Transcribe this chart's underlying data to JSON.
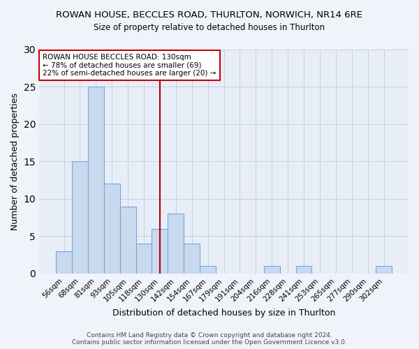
{
  "title": "ROWAN HOUSE, BECCLES ROAD, THURLTON, NORWICH, NR14 6RE",
  "subtitle": "Size of property relative to detached houses in Thurlton",
  "xlabel": "Distribution of detached houses by size in Thurlton",
  "ylabel": "Number of detached properties",
  "categories": [
    "56sqm",
    "68sqm",
    "81sqm",
    "93sqm",
    "105sqm",
    "118sqm",
    "130sqm",
    "142sqm",
    "154sqm",
    "167sqm",
    "179sqm",
    "191sqm",
    "204sqm",
    "216sqm",
    "228sqm",
    "241sqm",
    "253sqm",
    "265sqm",
    "277sqm",
    "290sqm",
    "302sqm"
  ],
  "values": [
    3,
    15,
    25,
    12,
    9,
    4,
    6,
    8,
    4,
    1,
    0,
    0,
    0,
    1,
    0,
    1,
    0,
    0,
    0,
    0,
    1
  ],
  "bar_color": "#c9d9ee",
  "bar_edge_color": "#6fa8dc",
  "highlight_index": 6,
  "vline_color": "#aa0000",
  "annotation_text": "ROWAN HOUSE BECCLES ROAD: 130sqm\n← 78% of detached houses are smaller (69)\n22% of semi-detached houses are larger (20) →",
  "annotation_box_color": "white",
  "annotation_box_edge_color": "#cc0000",
  "ylim": [
    0,
    30
  ],
  "yticks": [
    0,
    5,
    10,
    15,
    20,
    25,
    30
  ],
  "footer": "Contains HM Land Registry data © Crown copyright and database right 2024.\nContains public sector information licensed under the Open Government Licence v3.0.",
  "background_color": "#f0f4fa",
  "plot_background_color": "#e8eef8",
  "grid_color": "#c8d0dc"
}
